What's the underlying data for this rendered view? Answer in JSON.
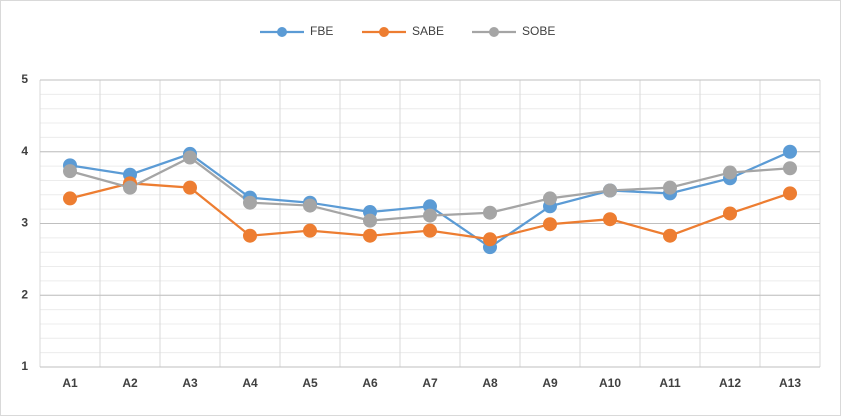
{
  "chart_data": {
    "type": "line",
    "categories": [
      "A1",
      "A2",
      "A3",
      "A4",
      "A5",
      "A6",
      "A7",
      "A8",
      "A9",
      "A10",
      "A11",
      "A12",
      "A13"
    ],
    "series": [
      {
        "name": "FBE",
        "color": "#5b9bd5",
        "values": [
          3.81,
          3.68,
          3.97,
          3.36,
          3.29,
          3.16,
          3.24,
          2.67,
          3.24,
          3.46,
          3.42,
          3.63,
          4.0
        ]
      },
      {
        "name": "SABE",
        "color": "#ed7d31",
        "values": [
          3.35,
          3.56,
          3.5,
          2.83,
          2.9,
          2.83,
          2.9,
          2.78,
          2.99,
          3.06,
          2.83,
          3.14,
          3.42
        ]
      },
      {
        "name": "SOBE",
        "color": "#a5a5a5",
        "values": [
          3.73,
          3.5,
          3.92,
          3.29,
          3.25,
          3.04,
          3.11,
          3.15,
          3.35,
          3.46,
          3.5,
          3.71,
          3.77
        ]
      }
    ],
    "ylim": [
      1,
      5
    ],
    "yticks": [
      1,
      2,
      3,
      4,
      5
    ],
    "grid": true,
    "legend": "top"
  }
}
